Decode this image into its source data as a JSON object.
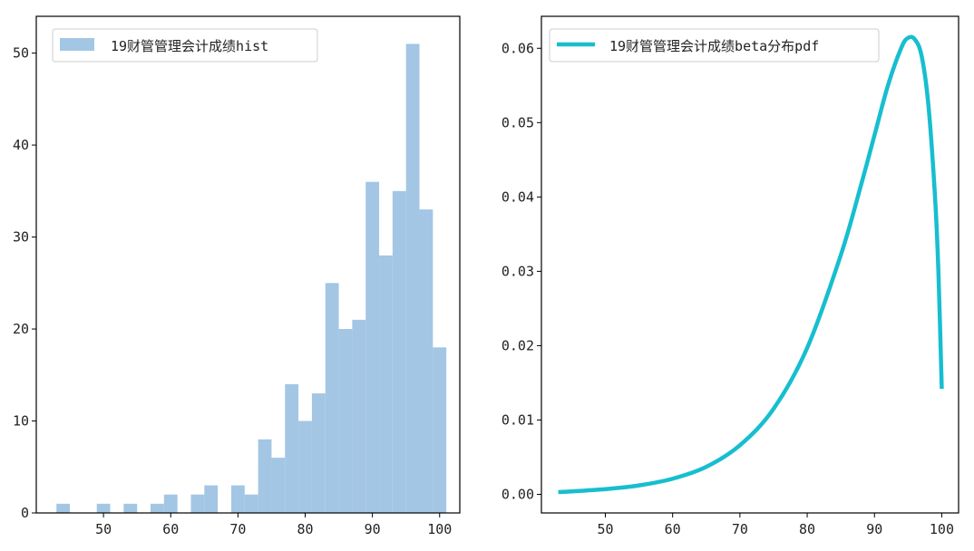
{
  "chart_data": [
    {
      "type": "bar",
      "title": "",
      "xlabel": "",
      "ylabel": "",
      "xlim": [
        40,
        103
      ],
      "ylim": [
        0,
        54
      ],
      "xticks": [
        50,
        60,
        70,
        80,
        90,
        100
      ],
      "yticks": [
        0,
        10,
        20,
        30,
        40,
        50
      ],
      "xtick_labels": [
        "50",
        "60",
        "70",
        "80",
        "90",
        "100"
      ],
      "ytick_labels": [
        "0",
        "10",
        "20",
        "30",
        "40",
        "50"
      ],
      "bin_width": 2,
      "bin_starts": [
        43,
        45,
        47,
        49,
        51,
        53,
        55,
        57,
        59,
        61,
        63,
        65,
        67,
        69,
        71,
        73,
        75,
        77,
        79,
        81,
        83,
        85,
        87,
        89,
        91,
        93,
        95,
        97,
        99
      ],
      "values": [
        1,
        0,
        0,
        1,
        0,
        1,
        0,
        1,
        2,
        0,
        2,
        3,
        0,
        3,
        2,
        8,
        6,
        14,
        10,
        13,
        25,
        20,
        21,
        36,
        28,
        35,
        51,
        33,
        18
      ],
      "legend_position": "upper-left",
      "series": [
        {
          "name": "19财管管理会计成绩hist",
          "color": "#a3c6e4"
        }
      ],
      "grid": false
    },
    {
      "type": "line",
      "title": "",
      "xlabel": "",
      "ylabel": "",
      "xlim": [
        40.5,
        102.5
      ],
      "ylim": [
        -0.0025,
        0.0643
      ],
      "xticks": [
        50,
        60,
        70,
        80,
        90,
        100
      ],
      "yticks": [
        0.0,
        0.01,
        0.02,
        0.03,
        0.04,
        0.05,
        0.06
      ],
      "xtick_labels": [
        "50",
        "60",
        "70",
        "80",
        "90",
        "100"
      ],
      "ytick_labels": [
        "0.00",
        "0.01",
        "0.02",
        "0.03",
        "0.04",
        "0.05",
        "0.06"
      ],
      "legend_position": "upper-left",
      "series": [
        {
          "name": "19财管管理会计成绩beta分布pdf",
          "color": "#17becf",
          "x": [
            43,
            45,
            50,
            55,
            60,
            65,
            70,
            75,
            80,
            85,
            88,
            90,
            92,
            94,
            95,
            96,
            97,
            98,
            99,
            99.5,
            100
          ],
          "y": [
            0.0003,
            0.0004,
            0.0007,
            0.0012,
            0.0021,
            0.0037,
            0.0066,
            0.0115,
            0.0197,
            0.0322,
            0.0416,
            0.0483,
            0.055,
            0.0601,
            0.0614,
            0.0612,
            0.059,
            0.0525,
            0.04,
            0.03,
            0.0142
          ]
        }
      ],
      "grid": false
    }
  ]
}
